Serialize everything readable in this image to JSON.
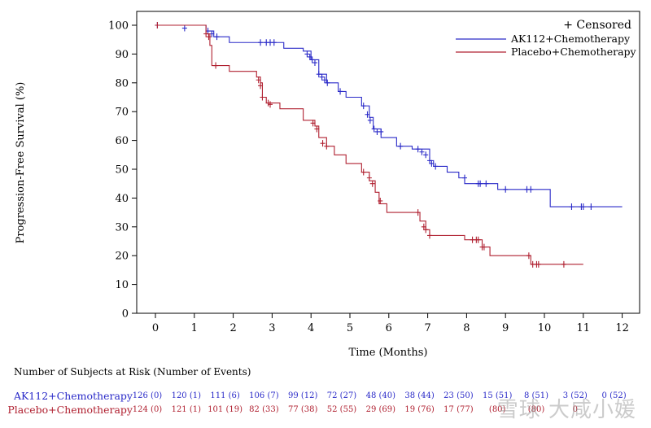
{
  "chart_data": {
    "type": "line",
    "xlabel": "Time (Months)",
    "ylabel": "Progression-Free Survival (%)",
    "xlim": [
      0,
      12
    ],
    "ylim": [
      0,
      100
    ],
    "xticks": [
      "0",
      "1",
      "2",
      "3",
      "4",
      "5",
      "6",
      "7",
      "8",
      "9",
      "10",
      "11",
      "12"
    ],
    "yticks": [
      "0",
      "10",
      "20",
      "30",
      "40",
      "50",
      "60",
      "70",
      "80",
      "90",
      "100"
    ],
    "legend": {
      "placement": "top-right",
      "censor_label": "+ Censored",
      "entries": [
        "AK112+Chemotherapy",
        "Placebo+Chemotherapy"
      ]
    },
    "series": [
      {
        "name": "AK112+Chemotherapy",
        "color": "#2a2ac8",
        "steps": [
          [
            0,
            100
          ],
          [
            1.3,
            98
          ],
          [
            1.5,
            96
          ],
          [
            1.9,
            94
          ],
          [
            3.3,
            92
          ],
          [
            3.8,
            91
          ],
          [
            4.0,
            88
          ],
          [
            4.2,
            83
          ],
          [
            4.4,
            80
          ],
          [
            4.7,
            77
          ],
          [
            4.9,
            75
          ],
          [
            5.3,
            72
          ],
          [
            5.5,
            68
          ],
          [
            5.6,
            64
          ],
          [
            5.8,
            61
          ],
          [
            6.2,
            58
          ],
          [
            6.6,
            57
          ],
          [
            7.05,
            53
          ],
          [
            7.15,
            51
          ],
          [
            7.5,
            49
          ],
          [
            7.8,
            47
          ],
          [
            7.95,
            45
          ],
          [
            8.8,
            43
          ],
          [
            10.15,
            37
          ],
          [
            12.0,
            37
          ]
        ],
        "censor": [
          [
            0.05,
            100
          ],
          [
            0.75,
            99
          ],
          [
            1.35,
            98
          ],
          [
            1.45,
            97
          ],
          [
            1.58,
            96
          ],
          [
            2.7,
            94
          ],
          [
            2.85,
            94
          ],
          [
            2.95,
            94
          ],
          [
            3.05,
            94
          ],
          [
            3.9,
            90
          ],
          [
            3.97,
            89
          ],
          [
            4.03,
            88
          ],
          [
            4.1,
            87
          ],
          [
            4.2,
            83
          ],
          [
            4.28,
            82
          ],
          [
            4.35,
            81
          ],
          [
            4.42,
            80
          ],
          [
            4.75,
            77
          ],
          [
            5.35,
            72
          ],
          [
            5.45,
            69
          ],
          [
            5.52,
            67
          ],
          [
            5.62,
            64
          ],
          [
            5.7,
            63
          ],
          [
            5.8,
            63
          ],
          [
            6.3,
            58
          ],
          [
            6.75,
            57
          ],
          [
            6.85,
            56
          ],
          [
            6.95,
            55
          ],
          [
            7.05,
            53
          ],
          [
            7.1,
            52
          ],
          [
            7.2,
            51
          ],
          [
            7.95,
            47
          ],
          [
            8.3,
            45
          ],
          [
            8.35,
            45
          ],
          [
            8.5,
            45
          ],
          [
            9.0,
            43
          ],
          [
            9.55,
            43
          ],
          [
            9.65,
            43
          ],
          [
            10.7,
            37
          ],
          [
            10.95,
            37
          ],
          [
            11.0,
            37
          ],
          [
            11.2,
            37
          ]
        ]
      },
      {
        "name": "Placebo+Chemotherapy",
        "color": "#b02030",
        "steps": [
          [
            0,
            100
          ],
          [
            1.3,
            97
          ],
          [
            1.4,
            93
          ],
          [
            1.45,
            86
          ],
          [
            1.9,
            84
          ],
          [
            2.6,
            82
          ],
          [
            2.7,
            80
          ],
          [
            2.75,
            75
          ],
          [
            2.85,
            73
          ],
          [
            3.2,
            71
          ],
          [
            3.8,
            67
          ],
          [
            4.1,
            65
          ],
          [
            4.2,
            61
          ],
          [
            4.4,
            58
          ],
          [
            4.6,
            55
          ],
          [
            4.9,
            52
          ],
          [
            5.3,
            49
          ],
          [
            5.5,
            46
          ],
          [
            5.65,
            42
          ],
          [
            5.75,
            38
          ],
          [
            5.95,
            35
          ],
          [
            6.7,
            35
          ],
          [
            6.8,
            32
          ],
          [
            6.95,
            29
          ],
          [
            7.05,
            27
          ],
          [
            7.95,
            25.5
          ],
          [
            8.4,
            23
          ],
          [
            8.6,
            20
          ],
          [
            9.55,
            20
          ],
          [
            9.65,
            17
          ],
          [
            11.0,
            17
          ]
        ],
        "censor": [
          [
            0.05,
            100
          ],
          [
            1.3,
            97
          ],
          [
            1.37,
            96
          ],
          [
            1.55,
            86
          ],
          [
            2.65,
            81
          ],
          [
            2.7,
            79
          ],
          [
            2.75,
            75
          ],
          [
            2.9,
            73
          ],
          [
            2.95,
            72.5
          ],
          [
            4.05,
            66
          ],
          [
            4.15,
            64
          ],
          [
            4.3,
            59
          ],
          [
            4.4,
            58
          ],
          [
            5.35,
            49
          ],
          [
            5.5,
            47
          ],
          [
            5.58,
            45
          ],
          [
            5.78,
            39
          ],
          [
            6.75,
            35
          ],
          [
            6.9,
            30
          ],
          [
            6.95,
            29
          ],
          [
            7.05,
            27
          ],
          [
            8.15,
            25.5
          ],
          [
            8.25,
            25.5
          ],
          [
            8.3,
            25.5
          ],
          [
            8.4,
            23
          ],
          [
            8.45,
            23
          ],
          [
            9.6,
            20
          ],
          [
            9.7,
            17
          ],
          [
            9.8,
            17
          ],
          [
            9.85,
            17
          ],
          [
            10.5,
            17
          ]
        ]
      }
    ]
  },
  "risk_table": {
    "title": "Number of Subjects at Risk (Number of Events)",
    "rows": [
      {
        "label": "AK112+Chemotherapy",
        "color": "#2a2ac8",
        "cells": [
          "126 (0)",
          "120 (1)",
          "111 (6)",
          "106 (7)",
          "99 (12)",
          "72 (27)",
          "48 (40)",
          "38 (44)",
          "23 (50)",
          "15 (51)",
          "8 (51)",
          "3 (52)",
          "0 (52)"
        ]
      },
      {
        "label": "Placebo+Chemotherapy",
        "color": "#b02030",
        "cells": [
          "124 (0)",
          "121 (1)",
          "101 (19)",
          "82 (33)",
          "77 (38)",
          "52 (55)",
          "29 (69)",
          "19 (76)",
          "17 (77)",
          "(80)",
          "(80)",
          "0",
          ""
        ]
      }
    ]
  },
  "watermark": "雪球 大咸小媛"
}
